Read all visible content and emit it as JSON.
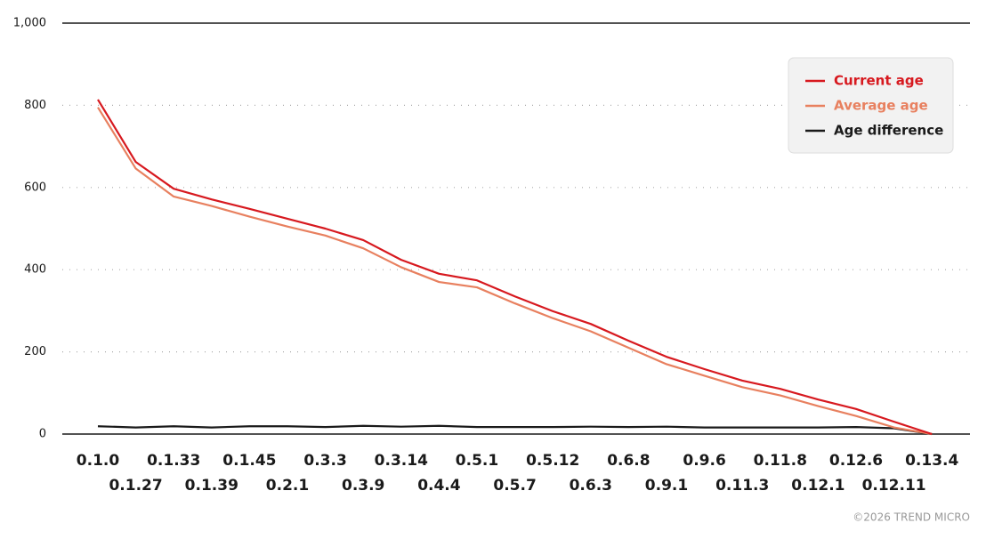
{
  "chart_data": {
    "type": "line",
    "categories": [
      "0.1.0",
      "0.1.27",
      "0.1.33",
      "0.1.39",
      "0.1.45",
      "0.2.1",
      "0.3.3",
      "0.3.9",
      "0.3.14",
      "0.4.4",
      "0.5.1",
      "0.5.7",
      "0.5.12",
      "0.6.3",
      "0.6.8",
      "0.9.1",
      "0.9.6",
      "0.11.3",
      "0.11.8",
      "0.12.1",
      "0.12.6",
      "0.12.11",
      "0.13.4"
    ],
    "series": [
      {
        "name": "Current age",
        "color": "#d7191f",
        "values": [
          814,
          662,
          597,
          571,
          548,
          524,
          500,
          472,
          424,
          390,
          374,
          335,
          299,
          268,
          227,
          188,
          158,
          130,
          110,
          84,
          61,
          30,
          0
        ]
      },
      {
        "name": "Average age",
        "color": "#e8805f",
        "values": [
          795,
          646,
          578,
          555,
          529,
          505,
          483,
          452,
          406,
          370,
          357,
          318,
          282,
          250,
          210,
          170,
          142,
          114,
          94,
          68,
          44,
          16,
          0
        ]
      },
      {
        "name": "Age difference",
        "color": "#1a1a1a",
        "values": [
          19,
          16,
          19,
          16,
          19,
          19,
          17,
          20,
          18,
          20,
          17,
          17,
          17,
          18,
          17,
          18,
          16,
          16,
          16,
          16,
          17,
          14,
          0
        ]
      }
    ],
    "ylim": [
      0,
      1000
    ],
    "yticks": [
      0,
      200,
      400,
      600,
      800,
      {
        "value": 1000,
        "label": "1,000"
      }
    ],
    "grid": true,
    "legend": "top-right",
    "credit": "©2026 TREND MICRO"
  }
}
